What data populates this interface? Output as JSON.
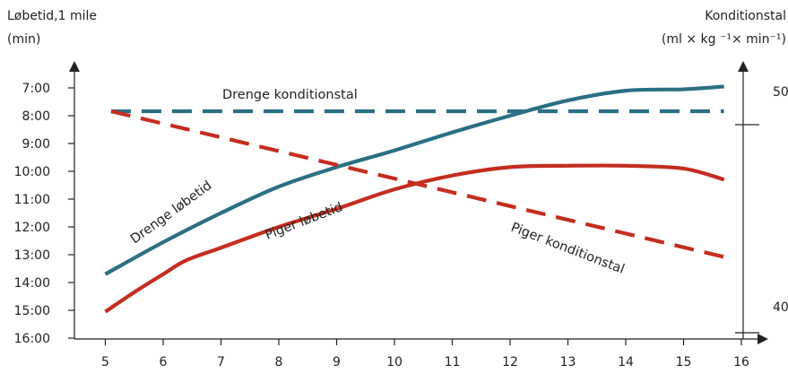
{
  "chart_data": {
    "type": "line",
    "left_axis": {
      "title_line1": "Løbetid,1 mile",
      "title_line2": "(min)",
      "ticks": [
        "7:00",
        "8:00",
        "9:00",
        "10:00",
        "11:00",
        "12:00",
        "13:00",
        "14:00",
        "15:00",
        "16:00"
      ],
      "range_minutes": [
        7,
        16
      ],
      "inverted": true
    },
    "right_axis": {
      "title_line1": "Konditionstal",
      "title_line2": "(ml × kg ⁻¹× min⁻¹)",
      "ticks": [
        "50",
        "40"
      ],
      "range": [
        40,
        50
      ]
    },
    "x_axis": {
      "ticks": [
        "5",
        "6",
        "7",
        "8",
        "9",
        "10",
        "11",
        "12",
        "13",
        "14",
        "15",
        "16"
      ],
      "range": [
        4.7,
        16
      ]
    },
    "series": [
      {
        "name": "Drenge løbetid",
        "axis": "left",
        "style": "solid",
        "color": "#2a6f84",
        "points": [
          [
            5,
            13.7
          ],
          [
            6,
            12.55
          ],
          [
            7,
            11.5
          ],
          [
            8,
            10.55
          ],
          [
            9,
            9.85
          ],
          [
            10,
            9.25
          ],
          [
            11,
            8.6
          ],
          [
            12,
            8.0
          ],
          [
            13,
            7.45
          ],
          [
            14,
            7.1
          ],
          [
            15,
            7.05
          ],
          [
            15.7,
            6.95
          ]
        ]
      },
      {
        "name": "Piger løbetid",
        "axis": "left",
        "style": "solid",
        "color": "#c42d1f",
        "points": [
          [
            5,
            15.05
          ],
          [
            5.5,
            14.35
          ],
          [
            6,
            13.7
          ],
          [
            6.4,
            13.2
          ],
          [
            7,
            12.75
          ],
          [
            8,
            12.0
          ],
          [
            9,
            11.35
          ],
          [
            10,
            10.65
          ],
          [
            11,
            10.15
          ],
          [
            12,
            9.85
          ],
          [
            13,
            9.8
          ],
          [
            14,
            9.8
          ],
          [
            15,
            9.9
          ],
          [
            15.7,
            10.3
          ]
        ]
      },
      {
        "name": "Drenge konditionstal",
        "axis": "right",
        "style": "dashed",
        "color": "#2a6f84",
        "points": [
          [
            5.1,
            49.05
          ],
          [
            15.7,
            49.05
          ]
        ]
      },
      {
        "name": "Piger konditionstal",
        "axis": "right",
        "style": "dashed",
        "color": "#c42d1f",
        "points": [
          [
            5.1,
            49.05
          ],
          [
            15.7,
            42.05
          ]
        ]
      }
    ]
  }
}
